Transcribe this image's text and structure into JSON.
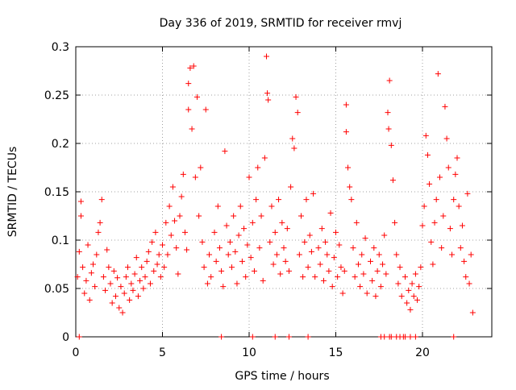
{
  "chart_data": {
    "type": "scatter",
    "title": "Day 336 of 2019, SRMTID for receiver rmvj",
    "xlabel": "GPS time / hours",
    "ylabel": "SRMTID / TECUs",
    "xlim": [
      0,
      24
    ],
    "ylim": [
      0,
      0.3
    ],
    "x_ticks": [
      0,
      5,
      10,
      15,
      20
    ],
    "x_tick_labels": [
      "0",
      "5",
      "10",
      "15",
      "20"
    ],
    "y_ticks": [
      0,
      0.05,
      0.1,
      0.15,
      0.2,
      0.25,
      0.3
    ],
    "y_tick_labels": [
      "0",
      "0.05",
      "0.1",
      "0.15",
      "0.2",
      "0.25",
      "0.3"
    ],
    "grid": true,
    "marker": "+",
    "color": "#ff0000",
    "series": [
      {
        "points": [
          [
            0.1,
            0.062
          ],
          [
            0.2,
            0.088
          ],
          [
            0.3,
            0.125
          ],
          [
            0.3,
            0.14
          ],
          [
            0.4,
            0.072
          ],
          [
            0.5,
            0.045
          ],
          [
            0.6,
            0.058
          ],
          [
            0.7,
            0.095
          ],
          [
            0.8,
            0.038
          ],
          [
            0.9,
            0.066
          ],
          [
            1.0,
            0.075
          ],
          [
            1.1,
            0.052
          ],
          [
            1.2,
            0.085
          ],
          [
            1.3,
            0.108
          ],
          [
            1.4,
            0.118
          ],
          [
            1.5,
            0.142
          ],
          [
            1.6,
            0.062
          ],
          [
            1.7,
            0.048
          ],
          [
            1.8,
            0.09
          ],
          [
            1.9,
            0.072
          ],
          [
            2.0,
            0.055
          ],
          [
            2.1,
            0.035
          ],
          [
            2.2,
            0.068
          ],
          [
            2.3,
            0.042
          ],
          [
            2.4,
            0.061
          ],
          [
            2.5,
            0.03
          ],
          [
            2.6,
            0.052
          ],
          [
            2.7,
            0.025
          ],
          [
            2.8,
            0.045
          ],
          [
            2.9,
            0.062
          ],
          [
            3.0,
            0.072
          ],
          [
            3.1,
            0.038
          ],
          [
            3.2,
            0.055
          ],
          [
            3.3,
            0.048
          ],
          [
            3.4,
            0.065
          ],
          [
            3.5,
            0.082
          ],
          [
            3.6,
            0.042
          ],
          [
            3.7,
            0.058
          ],
          [
            3.8,
            0.072
          ],
          [
            3.9,
            0.05
          ],
          [
            4.0,
            0.062
          ],
          [
            4.1,
            0.078
          ],
          [
            4.2,
            0.088
          ],
          [
            4.3,
            0.055
          ],
          [
            4.4,
            0.098
          ],
          [
            4.5,
            0.068
          ],
          [
            4.6,
            0.108
          ],
          [
            4.7,
            0.075
          ],
          [
            4.8,
            0.085
          ],
          [
            4.9,
            0.062
          ],
          [
            5.0,
            0.095
          ],
          [
            5.1,
            0.072
          ],
          [
            5.2,
            0.118
          ],
          [
            5.3,
            0.085
          ],
          [
            5.4,
            0.135
          ],
          [
            5.5,
            0.105
          ],
          [
            5.6,
            0.155
          ],
          [
            5.7,
            0.12
          ],
          [
            5.8,
            0.092
          ],
          [
            5.9,
            0.065
          ],
          [
            6.0,
            0.125
          ],
          [
            6.1,
            0.145
          ],
          [
            6.2,
            0.168
          ],
          [
            6.3,
            0.108
          ],
          [
            6.4,
            0.09
          ],
          [
            6.5,
            0.235
          ],
          [
            6.5,
            0.262
          ],
          [
            6.6,
            0.278
          ],
          [
            6.7,
            0.215
          ],
          [
            6.8,
            0.28
          ],
          [
            6.9,
            0.165
          ],
          [
            7.0,
            0.248
          ],
          [
            7.1,
            0.125
          ],
          [
            7.2,
            0.175
          ],
          [
            7.3,
            0.098
          ],
          [
            7.4,
            0.072
          ],
          [
            7.5,
            0.235
          ],
          [
            7.6,
            0.055
          ],
          [
            7.7,
            0.085
          ],
          [
            7.8,
            0.062
          ],
          [
            8.0,
            0.108
          ],
          [
            8.1,
            0.078
          ],
          [
            8.2,
            0.135
          ],
          [
            8.3,
            0.092
          ],
          [
            8.4,
            0.068
          ],
          [
            8.5,
            0.052
          ],
          [
            8.6,
            0.192
          ],
          [
            8.7,
            0.115
          ],
          [
            8.8,
            0.085
          ],
          [
            8.9,
            0.098
          ],
          [
            9.0,
            0.072
          ],
          [
            9.1,
            0.125
          ],
          [
            9.2,
            0.088
          ],
          [
            9.3,
            0.055
          ],
          [
            9.4,
            0.105
          ],
          [
            9.5,
            0.135
          ],
          [
            9.6,
            0.078
          ],
          [
            9.7,
            0.112
          ],
          [
            9.8,
            0.062
          ],
          [
            9.9,
            0.095
          ],
          [
            10.0,
            0.165
          ],
          [
            10.1,
            0.082
          ],
          [
            10.2,
            0.118
          ],
          [
            10.3,
            0.068
          ],
          [
            10.4,
            0.142
          ],
          [
            10.5,
            0.175
          ],
          [
            10.6,
            0.092
          ],
          [
            10.7,
            0.125
          ],
          [
            10.8,
            0.058
          ],
          [
            10.9,
            0.185
          ],
          [
            11.0,
            0.29
          ],
          [
            11.05,
            0.252
          ],
          [
            11.1,
            0.245
          ],
          [
            11.2,
            0.098
          ],
          [
            11.3,
            0.135
          ],
          [
            11.4,
            0.075
          ],
          [
            11.5,
            0.108
          ],
          [
            11.6,
            0.085
          ],
          [
            11.7,
            0.142
          ],
          [
            11.8,
            0.065
          ],
          [
            11.9,
            0.118
          ],
          [
            12.0,
            0.092
          ],
          [
            12.1,
            0.078
          ],
          [
            12.2,
            0.112
          ],
          [
            12.3,
            0.068
          ],
          [
            12.4,
            0.155
          ],
          [
            12.5,
            0.205
          ],
          [
            12.6,
            0.195
          ],
          [
            12.7,
            0.248
          ],
          [
            12.8,
            0.232
          ],
          [
            12.9,
            0.085
          ],
          [
            13.0,
            0.125
          ],
          [
            13.1,
            0.062
          ],
          [
            13.2,
            0.098
          ],
          [
            13.3,
            0.142
          ],
          [
            13.4,
            0.072
          ],
          [
            13.5,
            0.105
          ],
          [
            13.6,
            0.088
          ],
          [
            13.7,
            0.148
          ],
          [
            13.8,
            0.062
          ],
          [
            14.0,
            0.092
          ],
          [
            14.1,
            0.075
          ],
          [
            14.2,
            0.112
          ],
          [
            14.3,
            0.058
          ],
          [
            14.4,
            0.098
          ],
          [
            14.5,
            0.085
          ],
          [
            14.6,
            0.068
          ],
          [
            14.7,
            0.128
          ],
          [
            14.8,
            0.052
          ],
          [
            14.9,
            0.082
          ],
          [
            15.0,
            0.108
          ],
          [
            15.1,
            0.062
          ],
          [
            15.2,
            0.095
          ],
          [
            15.3,
            0.072
          ],
          [
            15.4,
            0.045
          ],
          [
            15.5,
            0.068
          ],
          [
            15.6,
            0.24
          ],
          [
            15.6,
            0.212
          ],
          [
            15.7,
            0.175
          ],
          [
            15.8,
            0.155
          ],
          [
            15.9,
            0.142
          ],
          [
            16.0,
            0.092
          ],
          [
            16.1,
            0.062
          ],
          [
            16.2,
            0.118
          ],
          [
            16.3,
            0.075
          ],
          [
            16.4,
            0.052
          ],
          [
            16.5,
            0.085
          ],
          [
            16.6,
            0.065
          ],
          [
            16.7,
            0.102
          ],
          [
            16.8,
            0.045
          ],
          [
            17.0,
            0.078
          ],
          [
            17.1,
            0.058
          ],
          [
            17.2,
            0.092
          ],
          [
            17.3,
            0.042
          ],
          [
            17.4,
            0.068
          ],
          [
            17.5,
            0.085
          ],
          [
            17.6,
            0.052
          ],
          [
            17.7,
            0.075
          ],
          [
            17.8,
            0.105
          ],
          [
            17.9,
            0.065
          ],
          [
            18.0,
            0.232
          ],
          [
            18.05,
            0.215
          ],
          [
            18.1,
            0.265
          ],
          [
            18.2,
            0.198
          ],
          [
            18.3,
            0.162
          ],
          [
            18.4,
            0.118
          ],
          [
            18.5,
            0.085
          ],
          [
            18.6,
            0.055
          ],
          [
            18.7,
            0.072
          ],
          [
            18.8,
            0.042
          ],
          [
            19.0,
            0.062
          ],
          [
            19.1,
            0.035
          ],
          [
            19.2,
            0.048
          ],
          [
            19.3,
            0.028
          ],
          [
            19.4,
            0.055
          ],
          [
            19.5,
            0.042
          ],
          [
            19.6,
            0.065
          ],
          [
            19.7,
            0.038
          ],
          [
            19.8,
            0.052
          ],
          [
            19.9,
            0.072
          ],
          [
            20.0,
            0.115
          ],
          [
            20.1,
            0.135
          ],
          [
            20.2,
            0.208
          ],
          [
            20.3,
            0.188
          ],
          [
            20.4,
            0.158
          ],
          [
            20.5,
            0.098
          ],
          [
            20.6,
            0.075
          ],
          [
            20.7,
            0.118
          ],
          [
            20.8,
            0.142
          ],
          [
            20.9,
            0.272
          ],
          [
            21.0,
            0.165
          ],
          [
            21.1,
            0.092
          ],
          [
            21.2,
            0.125
          ],
          [
            21.3,
            0.238
          ],
          [
            21.4,
            0.205
          ],
          [
            21.5,
            0.175
          ],
          [
            21.6,
            0.112
          ],
          [
            21.7,
            0.085
          ],
          [
            21.8,
            0.142
          ],
          [
            21.9,
            0.168
          ],
          [
            22.0,
            0.185
          ],
          [
            22.1,
            0.135
          ],
          [
            22.2,
            0.092
          ],
          [
            22.3,
            0.115
          ],
          [
            22.4,
            0.078
          ],
          [
            22.5,
            0.062
          ],
          [
            22.6,
            0.148
          ],
          [
            22.7,
            0.055
          ],
          [
            22.8,
            0.085
          ],
          [
            22.9,
            0.025
          ]
        ]
      }
    ],
    "zero_points_x": [
      0.2,
      8.4,
      10.2,
      11.5,
      12.3,
      13.4,
      17.6,
      17.8,
      18.1,
      18.2,
      18.5,
      18.7,
      18.9,
      19.0,
      19.3,
      19.6,
      21.8
    ]
  }
}
